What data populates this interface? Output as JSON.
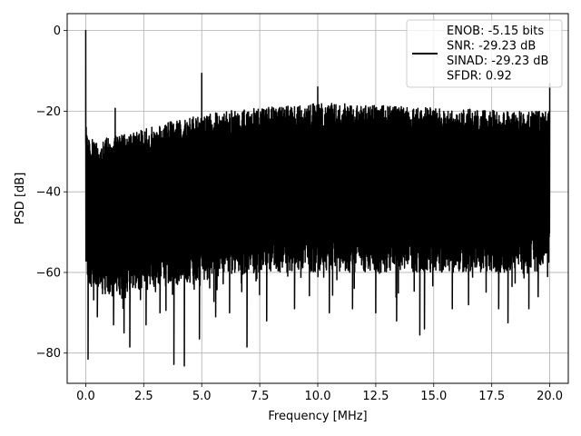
{
  "chart_data": {
    "type": "line",
    "xlabel": "Frequency [MHz]",
    "ylabel": "PSD [dB]",
    "xlim": [
      -0.8,
      20.8
    ],
    "ylim": [
      -87.5,
      4.2
    ],
    "grid": true,
    "xticks": [
      0.0,
      2.5,
      5.0,
      7.5,
      10.0,
      12.5,
      15.0,
      17.5,
      20.0
    ],
    "xtick_labels": [
      "0.0",
      "2.5",
      "5.0",
      "7.5",
      "10.0",
      "12.5",
      "15.0",
      "17.5",
      "20.0"
    ],
    "yticks": [
      0,
      -20,
      -40,
      -60,
      -80
    ],
    "ytick_labels": [
      "0",
      "−20",
      "−40",
      "−60",
      "−80"
    ],
    "legend": {
      "placement": "top-right",
      "entries": [
        "ENOB: -5.15 bits",
        "SNR: -29.23 dB",
        "SINAD: -29.23 dB",
        "SFDR: 0.92"
      ]
    },
    "series": [
      {
        "color": "#000000",
        "x_range": [
          0,
          20
        ],
        "upper_envelope": {
          "x": [
            0,
            0.15,
            0.5,
            1,
            2,
            3,
            4,
            5,
            6,
            7,
            8,
            9,
            10,
            11,
            12,
            13,
            14,
            15,
            16,
            17,
            18,
            19,
            20
          ],
          "y": [
            -25,
            -26,
            -27,
            -26.5,
            -25,
            -23.5,
            -22,
            -21,
            -20,
            -19.5,
            -19,
            -18.5,
            -18,
            -18,
            -18.5,
            -18.5,
            -19,
            -19,
            -19.5,
            -19.5,
            -20,
            -20,
            -20
          ]
        },
        "lower_envelope": {
          "x": [
            0,
            0.2,
            1,
            2,
            3,
            4,
            5,
            6,
            7,
            8,
            9,
            10,
            11,
            12,
            13,
            14,
            15,
            16,
            17,
            18,
            19,
            20
          ],
          "y": [
            -60,
            -64,
            -66,
            -65,
            -64,
            -63,
            -62,
            -61,
            -60.5,
            -60,
            -60,
            -60,
            -60,
            -60,
            -60,
            -60,
            -60,
            -60,
            -60,
            -60,
            -59,
            -58
          ]
        },
        "spikes": [
          {
            "x": 0.0,
            "y": 0.0
          },
          {
            "x": 0.02,
            "y": -24
          },
          {
            "x": 1.27,
            "y": -19.3
          },
          {
            "x": 5.0,
            "y": -10.6
          },
          {
            "x": 10.0,
            "y": -14
          },
          {
            "x": 20.0,
            "y": -13
          }
        ],
        "dips": [
          {
            "x": 0.1,
            "y": -81.5
          },
          {
            "x": 0.5,
            "y": -71
          },
          {
            "x": 1.2,
            "y": -73
          },
          {
            "x": 1.65,
            "y": -75
          },
          {
            "x": 1.9,
            "y": -78.5
          },
          {
            "x": 2.6,
            "y": -73
          },
          {
            "x": 3.2,
            "y": -70
          },
          {
            "x": 3.8,
            "y": -82.8
          },
          {
            "x": 4.25,
            "y": -83.2
          },
          {
            "x": 4.9,
            "y": -76.5
          },
          {
            "x": 5.6,
            "y": -71
          },
          {
            "x": 6.2,
            "y": -70
          },
          {
            "x": 6.95,
            "y": -78.5
          },
          {
            "x": 7.8,
            "y": -72
          },
          {
            "x": 9.0,
            "y": -69
          },
          {
            "x": 10.5,
            "y": -70
          },
          {
            "x": 11.5,
            "y": -69
          },
          {
            "x": 12.5,
            "y": -70
          },
          {
            "x": 13.4,
            "y": -72
          },
          {
            "x": 14.4,
            "y": -75.5
          },
          {
            "x": 14.6,
            "y": -74
          },
          {
            "x": 15.8,
            "y": -69
          },
          {
            "x": 16.5,
            "y": -68
          },
          {
            "x": 17.8,
            "y": -69
          },
          {
            "x": 18.2,
            "y": -72.5
          },
          {
            "x": 19.1,
            "y": -69
          },
          {
            "x": 19.5,
            "y": -66
          }
        ]
      }
    ]
  }
}
